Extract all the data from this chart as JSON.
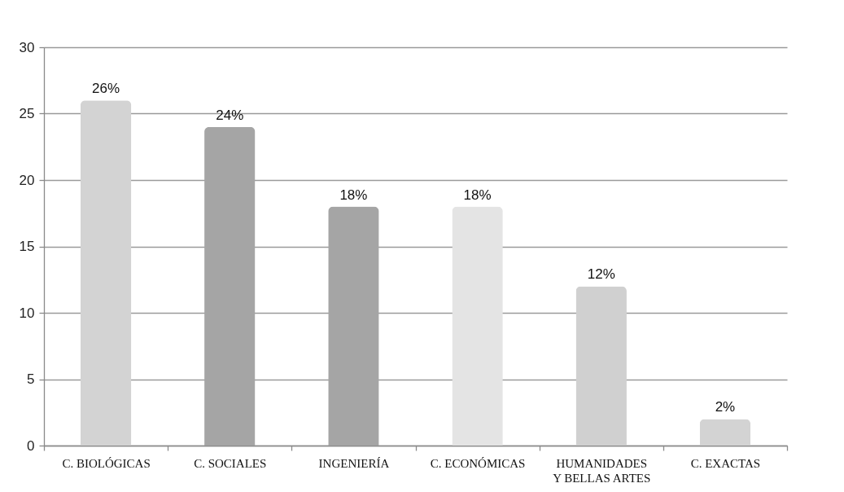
{
  "chart_data": {
    "type": "bar",
    "categories": [
      "C. BIOLÓGICAS",
      "C. SOCIALES",
      "INGENIERÍA",
      "C. ECONÓMICAS",
      "HUMANIDADES Y BELLAS ARTES",
      "C. EXACTAS"
    ],
    "values": [
      26,
      24,
      18,
      18,
      12,
      2
    ],
    "value_labels": [
      "26%",
      "24%",
      "18%",
      "18%",
      "12%",
      "2%"
    ],
    "colors": [
      "#d3d3d3",
      "#a5a5a5",
      "#a5a5a5",
      "#e4e4e4",
      "#d0d0d0",
      "#d3d3d3"
    ],
    "ylim": [
      0,
      30
    ],
    "yticks": [
      0,
      5,
      10,
      15,
      20,
      25,
      30
    ],
    "grid": "y"
  }
}
